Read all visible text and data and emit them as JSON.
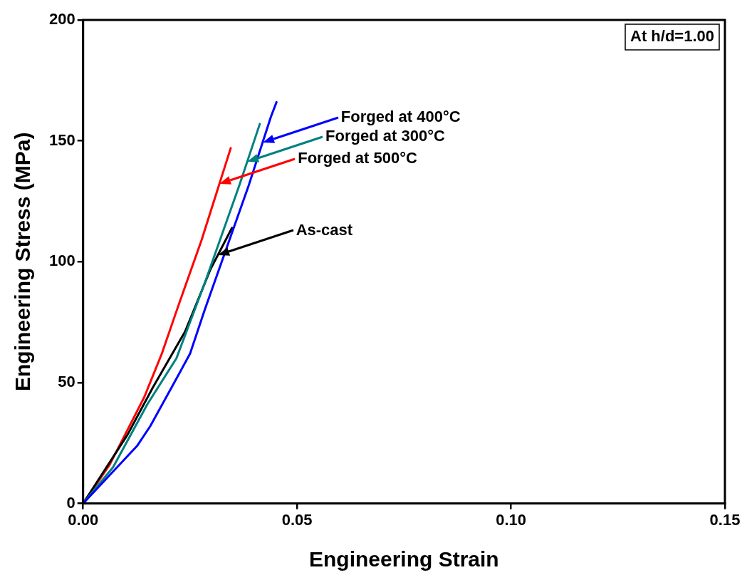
{
  "chart_data": {
    "type": "line",
    "xlabel": "Engineering Strain",
    "ylabel": "Engineering Stress (MPa)",
    "xlim": [
      0,
      0.15
    ],
    "ylim": [
      0,
      200
    ],
    "xticks": [
      {
        "value": 0,
        "label": "0.00"
      },
      0.05,
      {
        "value": 0.1,
        "label": "0.10"
      },
      0.15
    ],
    "yticks": [
      0,
      50,
      100,
      150,
      200
    ],
    "grid": false,
    "legend": false,
    "marker": "none",
    "line_style": "solid",
    "series": [
      {
        "name": "Forged at 400°C",
        "color": "#0000ff",
        "x": [
          0,
          0.0127,
          0.0157,
          0.021,
          0.025,
          0.0284,
          0.0338,
          0.0386,
          0.0439,
          0.0452
        ],
        "values": [
          0,
          24,
          32,
          49,
          62,
          80,
          107,
          131,
          160,
          166
        ]
      },
      {
        "name": "Forged at 300°C",
        "color": "#008080",
        "x": [
          0,
          0.007,
          0.015,
          0.0218,
          0.0284,
          0.0364,
          0.0413
        ],
        "values": [
          0,
          15,
          41,
          60,
          91,
          131,
          157
        ]
      },
      {
        "name": "As-cast",
        "color": "#000000",
        "x": [
          0,
          0.0104,
          0.0163,
          0.0238,
          0.0298,
          0.0348
        ],
        "values": [
          0,
          28.5,
          48,
          71,
          97,
          114
        ]
      },
      {
        "name": "Forged at 500°C",
        "color": "#ff0000",
        "x": [
          0,
          0.0062,
          0.0143,
          0.0184,
          0.0223,
          0.0277,
          0.0345
        ],
        "values": [
          0,
          16,
          44,
          62,
          82,
          109,
          147
        ]
      }
    ],
    "annotations": [
      "At h/d=1.00"
    ]
  }
}
